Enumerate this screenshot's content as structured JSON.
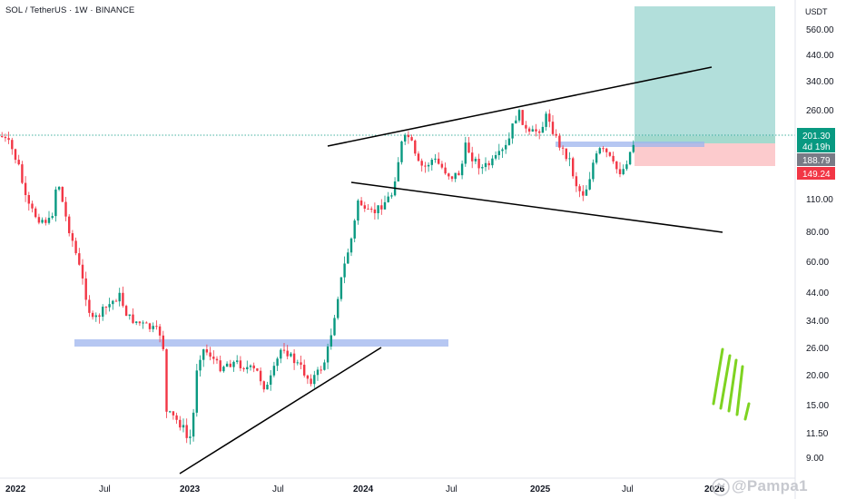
{
  "header": {
    "symbol_title": "SOL / TetherUS · 1W · BINANCE",
    "price_axis_unit": "USDT"
  },
  "price_axis": {
    "ticks": [
      "560.00",
      "440.00",
      "340.00",
      "260.00",
      "110.00",
      "80.00",
      "60.00",
      "44.00",
      "34.00",
      "26.00",
      "20.00",
      "15.00",
      "11.50",
      "9.00"
    ]
  },
  "price_tags": {
    "last_price": "201.30",
    "countdown": "4d 19h",
    "entry_price": "188.79",
    "stop_price": "149.24"
  },
  "time_axis": {
    "labels": [
      "2022",
      "Jul",
      "2023",
      "Jul",
      "2024",
      "Jul",
      "2025",
      "Jul",
      "2026"
    ]
  },
  "watermark": {
    "text": "@Pampa1"
  },
  "colors": {
    "bull": "#089981",
    "bear": "#f23645",
    "target_zone": "#b2dfdb",
    "stop_zone": "#fccbcd",
    "support_band": "#9db4ee",
    "last_price_tag": "#089981",
    "entry_tag": "#787b86",
    "stop_tag": "#f23645",
    "logo_green": "#7ed321"
  }
}
